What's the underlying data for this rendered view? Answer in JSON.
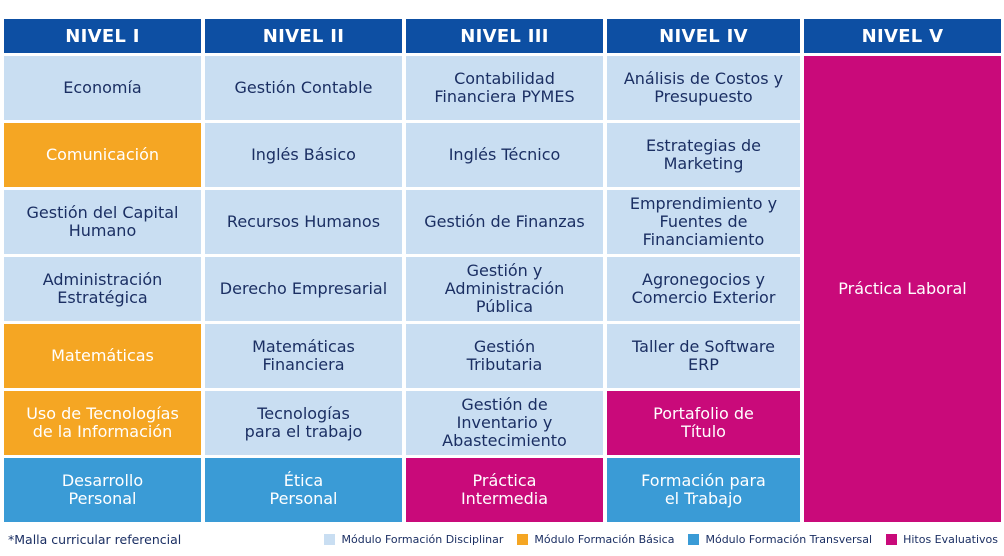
{
  "headers": [
    "NIVEL I",
    "NIVEL II",
    "NIVEL III",
    "NIVEL IV",
    "NIVEL V"
  ],
  "rows": [
    [
      "Economía",
      "Gestión Contable",
      "Contabilidad\nFinanciera PYMES",
      "Análisis de Costos y\nPresupuesto"
    ],
    [
      "Comunicación",
      "Inglés Básico",
      "Inglés Técnico",
      "Estrategias de\nMarketing"
    ],
    [
      "Gestión del Capital\nHumano",
      "Recursos Humanos",
      "Gestión de Finanzas",
      "Emprendimiento y\nFuentes de\nFinanciamiento"
    ],
    [
      "Administración\nEstratégica",
      "Derecho Empresarial",
      "Gestión y\nAdministración\nPública",
      "Agronegocios y\nComercio Exterior"
    ],
    [
      "Matemáticas",
      "Matemáticas\nFinanciera",
      "Gestión\nTributaria",
      "Taller de Software\nERP"
    ],
    [
      "Uso de Tecnologías\nde la Información",
      "Tecnologías\npara el trabajo",
      "Gestión de\nInventario y\nAbastecimiento",
      "Portafolio de\nTítulo"
    ],
    [
      "Desarrollo\nPersonal",
      "Ética\nPersonal",
      "Práctica\nIntermedia",
      "Formación para\nel Trabajo"
    ]
  ],
  "nivel_v_cell": "Práctica Laboral",
  "footnote": "*Malla curricular referencial",
  "legend": [
    {
      "label": "Módulo Formación Disciplinar",
      "color": "#c9def2"
    },
    {
      "label": "Módulo Formación Básica",
      "color": "#f5a623"
    },
    {
      "label": "Módulo Formación Transversal",
      "color": "#3a9bd6"
    },
    {
      "label": "Hitos Evaluativos",
      "color": "#c90a7a"
    }
  ],
  "colors": {
    "header": "#0d4fa3",
    "disciplinar": "#c9def2",
    "basica": "#f5a623",
    "transversal": "#3a9bd6",
    "hito": "#c90a7a",
    "text_dark": "#1b2f63"
  }
}
